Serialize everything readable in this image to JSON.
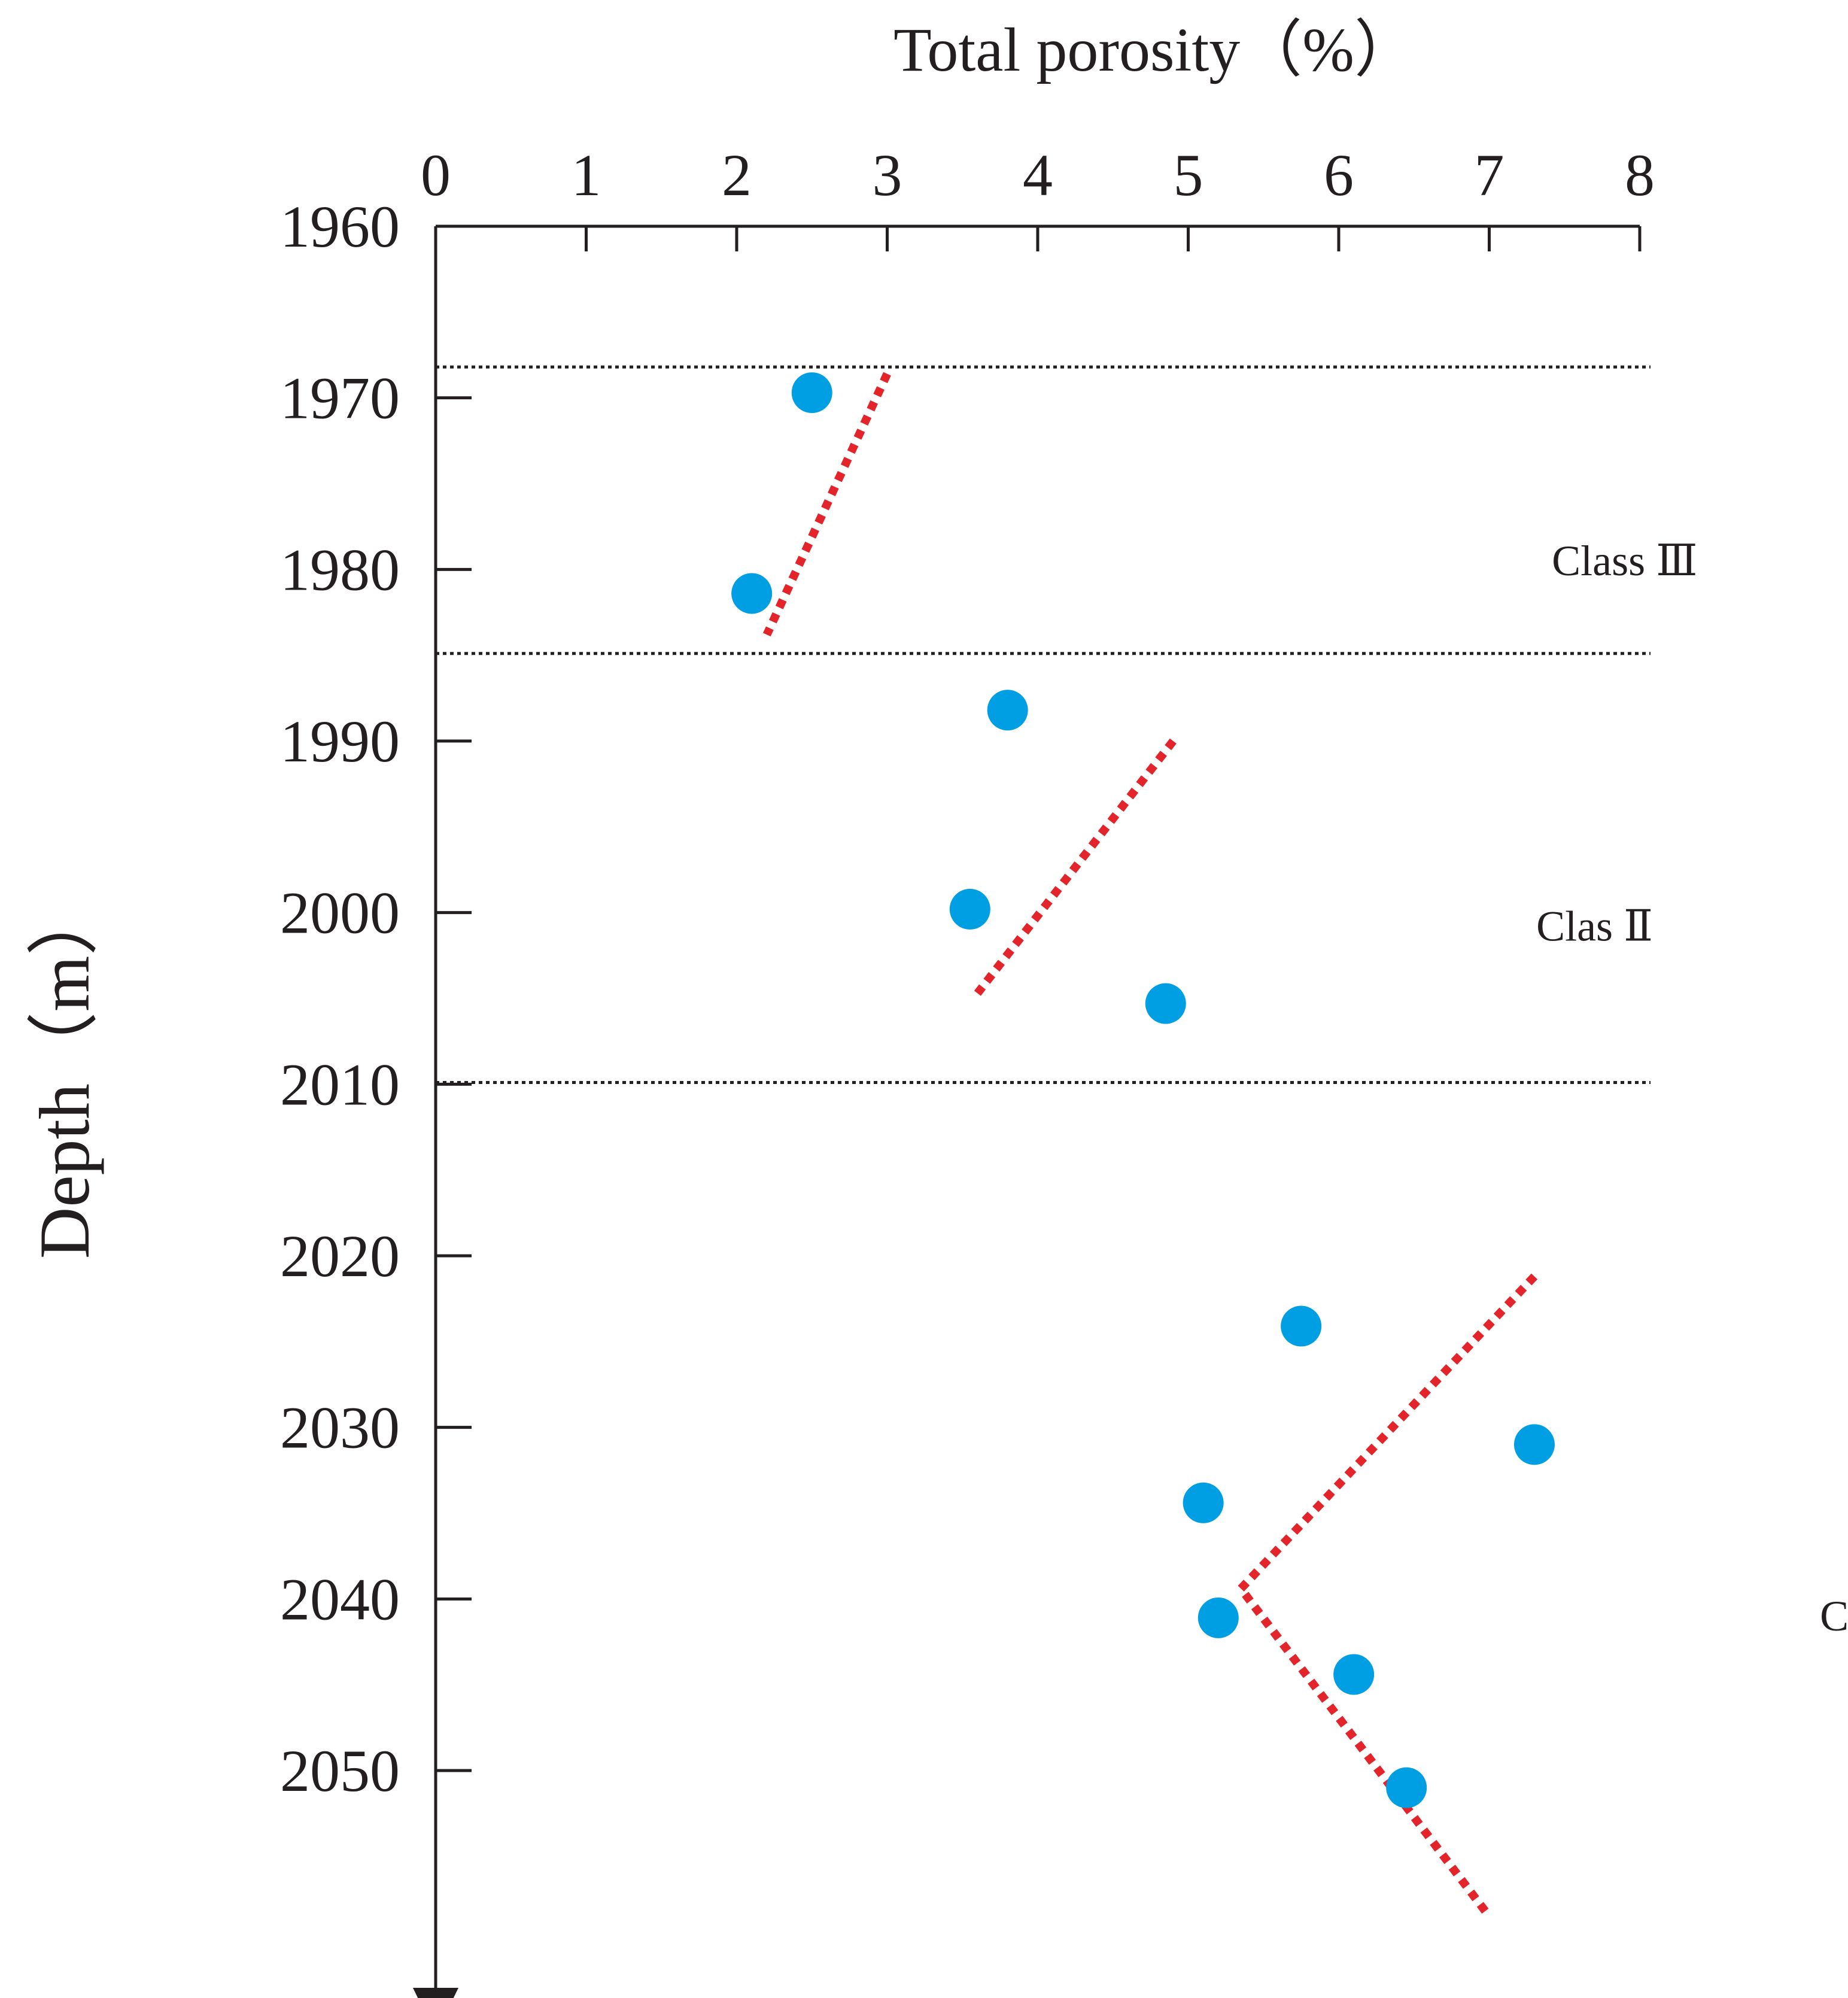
{
  "chart_data": {
    "type": "scatter",
    "xlabel": "Total porosity（%）",
    "ylabel": "Depth（m）",
    "xlim": [
      0,
      8
    ],
    "ylim": [
      1960,
      2059
    ],
    "x_axis_position": "top",
    "y_axis_direction": "down",
    "x_ticks": [
      "0",
      "1",
      "2",
      "3",
      "4",
      "5",
      "6",
      "7",
      "8"
    ],
    "y_ticks": [
      "1960",
      "1970",
      "1980",
      "1990",
      "2000",
      "2010",
      "2020",
      "2030",
      "2040",
      "2050"
    ],
    "colors": {
      "points": "#009fe3",
      "trend": "#e3242b",
      "axis": "#231f20",
      "boundary": "#231f20"
    },
    "points": [
      {
        "x": 2.5,
        "y": 1969.7
      },
      {
        "x": 2.1,
        "y": 1981.4
      },
      {
        "x": 3.8,
        "y": 1988.2
      },
      {
        "x": 3.55,
        "y": 1999.8
      },
      {
        "x": 4.85,
        "y": 2005.3
      },
      {
        "x": 5.75,
        "y": 2024.1
      },
      {
        "x": 7.3,
        "y": 2031.0
      },
      {
        "x": 5.1,
        "y": 2034.4
      },
      {
        "x": 5.2,
        "y": 2041.1
      },
      {
        "x": 6.1,
        "y": 2044.4
      },
      {
        "x": 6.45,
        "y": 2051.0
      }
    ],
    "trend_lines": [
      [
        {
          "x": 3.0,
          "y": 1968.6
        },
        {
          "x": 2.2,
          "y": 1983.8
        }
      ],
      [
        {
          "x": 4.9,
          "y": 1990.0
        },
        {
          "x": 3.6,
          "y": 2004.7
        }
      ],
      [
        {
          "x": 7.3,
          "y": 2021.2
        },
        {
          "x": 5.35,
          "y": 2039.4
        },
        {
          "x": 7.0,
          "y": 2058.5
        }
      ]
    ],
    "boundaries": [
      1968.2,
      1984.9,
      2009.9
    ],
    "classes": [
      {
        "label": "Class Ⅲ",
        "x": 7.9,
        "y": 1979.5
      },
      {
        "label": "Clas Ⅱ",
        "x": 7.7,
        "y": 2000.8
      },
      {
        "label": "Class Ⅰ",
        "x": 9.6,
        "y": 2041.0
      }
    ]
  }
}
